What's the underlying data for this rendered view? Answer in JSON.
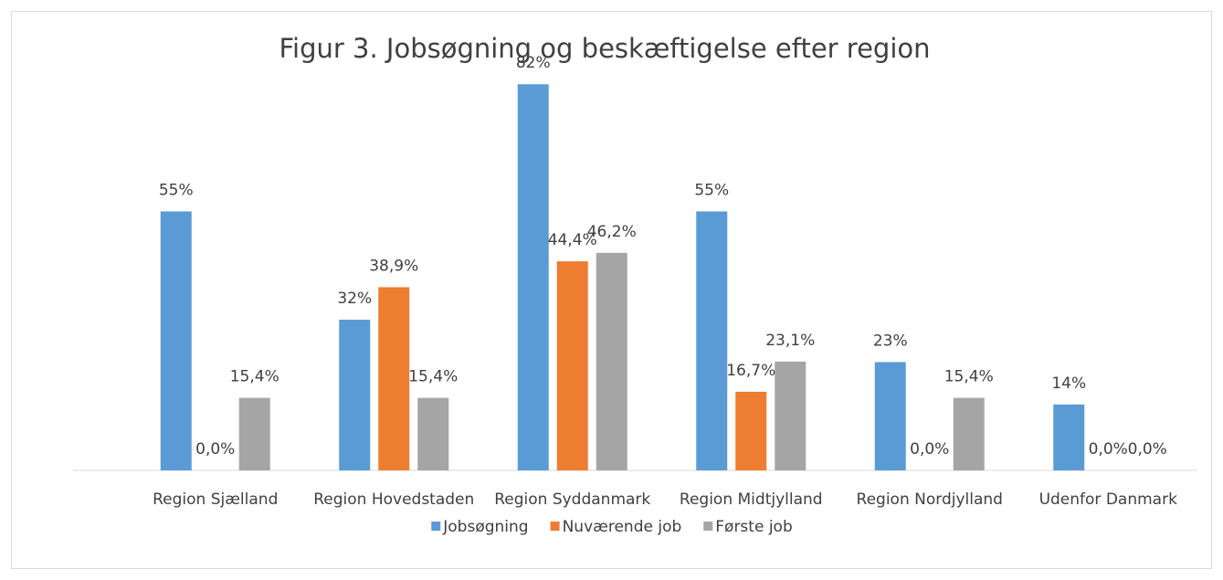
{
  "chart_data": {
    "type": "bar",
    "title": "Figur 3. Jobsøgning og beskæftigelse efter region",
    "categories": [
      "Region Sjælland",
      "Region Hovedstaden",
      "Region Syddanmark",
      "Region Midtjylland",
      "Region Nordjylland",
      "Udenfor Danmark"
    ],
    "series": [
      {
        "name": "Jobsøgning",
        "color": "#5b9bd5",
        "values": [
          55,
          32,
          82,
          55,
          23,
          14
        ],
        "value_labels": [
          "55%",
          "32%",
          "82%",
          "55%",
          "23%",
          "14%"
        ]
      },
      {
        "name": "Nuværende job",
        "color": "#ed7d31",
        "values": [
          0.0,
          38.9,
          44.4,
          16.7,
          0.0,
          0.0
        ],
        "value_labels": [
          "0,0%",
          "38,9%",
          "44,4%",
          "16,7%",
          "0,0%",
          "0,0%"
        ]
      },
      {
        "name": "Første job",
        "color": "#a5a5a5",
        "values": [
          15.4,
          15.4,
          46.2,
          23.1,
          15.4,
          0.0
        ],
        "value_labels": [
          "15,4%",
          "15,4%",
          "46,2%",
          "23,1%",
          "15,4%",
          "0,0%"
        ]
      }
    ],
    "ylim": [
      0,
      90
    ],
    "legend": "bottom"
  }
}
